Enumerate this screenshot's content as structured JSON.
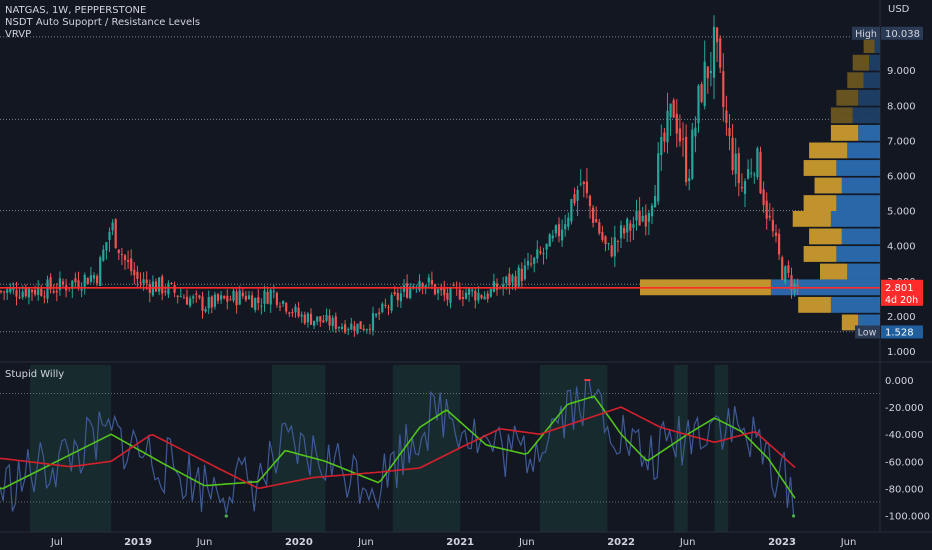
{
  "header": {
    "symbol_line": "NATGAS, 1W, PEPPERSTONE",
    "indicator_1": "NSDT Auto Supoprt / Resistance Levels",
    "indicator_2": "VRVP",
    "oscillator_title": "Stupid Willy"
  },
  "price_axis": {
    "currency": "USD",
    "high_label": "High",
    "high_value": "10.038",
    "low_label": "Low",
    "low_value": "1.528",
    "last_price": "2.801",
    "countdown": "4d 20h"
  },
  "colors": {
    "background": "#131722",
    "bull": "#26a69a",
    "bear": "#ef5350",
    "price_line": "#ff2b2b",
    "vrvp_blue": "#2b6cb0",
    "vrvp_gold": "#c99a2e",
    "vrvp_blue_dim": "#1e3f66",
    "vrvp_gold_dim": "#6b5620",
    "will_line": "#3f5a96",
    "fast_ma": "#52c41a",
    "slow_ma": "#d4202c",
    "zone": "#1c3a36"
  },
  "chart_data": [
    {
      "type": "candlestick",
      "title": "NATGAS, 1W, PEPPERSTONE",
      "x_ticks": [
        "Jul",
        "2019",
        "Jun",
        "2020",
        "Jun",
        "2021",
        "Jun",
        "2022",
        "Jun",
        "2023",
        "Jun"
      ],
      "y_ticks": [
        "1.000",
        "2.000",
        "3.000",
        "4.000",
        "5.000",
        "6.000",
        "7.000",
        "8.000",
        "9.000"
      ],
      "ylim": [
        0.7,
        10.5
      ],
      "price_path": [
        [
          "2018-03",
          2.7
        ],
        [
          "2018-07",
          2.8
        ],
        [
          "2018-10",
          3.2
        ],
        [
          "2018-11",
          4.6
        ],
        [
          "2018-12",
          3.6
        ],
        [
          "2019-01",
          3.0
        ],
        [
          "2019-03",
          2.8
        ],
        [
          "2019-06",
          2.3
        ],
        [
          "2019-09",
          2.6
        ],
        [
          "2019-10",
          2.4
        ],
        [
          "2019-11",
          2.7
        ],
        [
          "2020-01",
          2.0
        ],
        [
          "2020-04",
          1.75
        ],
        [
          "2020-06",
          1.7
        ],
        [
          "2020-08",
          2.4
        ],
        [
          "2020-10",
          3.1
        ],
        [
          "2020-12",
          2.5
        ],
        [
          "2021-01",
          2.7
        ],
        [
          "2021-03",
          2.6
        ],
        [
          "2021-06",
          3.3
        ],
        [
          "2021-08",
          4.1
        ],
        [
          "2021-10",
          5.8
        ],
        [
          "2021-11",
          4.8
        ],
        [
          "2021-12",
          3.8
        ],
        [
          "2022-01",
          4.3
        ],
        [
          "2022-03",
          5.0
        ],
        [
          "2022-05",
          8.0
        ],
        [
          "2022-06",
          6.0
        ],
        [
          "2022-07",
          8.5
        ],
        [
          "2022-08",
          9.6
        ],
        [
          "2022-09",
          7.0
        ],
        [
          "2022-10",
          5.6
        ],
        [
          "2022-11",
          6.6
        ],
        [
          "2022-12",
          4.8
        ],
        [
          "2023-01",
          3.3
        ],
        [
          "2023-02",
          2.8
        ]
      ],
      "horizontal_levels": [
        9.95,
        7.6,
        5.0,
        2.9,
        1.55
      ],
      "last_price": 2.801,
      "high": 10.038,
      "low": 1.528
    },
    {
      "type": "bar",
      "title": "VRVP",
      "price_bins": [
        1.8,
        2.3,
        2.8,
        3.25,
        3.75,
        4.25,
        4.75,
        5.2,
        5.7,
        6.2,
        6.7,
        7.2,
        7.7,
        8.2,
        8.7,
        9.2,
        9.7
      ],
      "buy_volume": [
        4,
        9,
        20,
        6,
        8,
        7,
        9,
        8,
        7,
        8,
        6,
        4,
        5,
        4,
        3,
        2,
        1
      ],
      "sell_volume": [
        3,
        6,
        24,
        5,
        6,
        6,
        7,
        6,
        5,
        6,
        7,
        5,
        4,
        4,
        3,
        3,
        2
      ]
    },
    {
      "type": "line",
      "title": "Stupid Willy",
      "y_ticks": [
        "0.000",
        "-20.000",
        "-40.000",
        "-60.000",
        "-80.000",
        "-100.000"
      ],
      "ylim": [
        -105,
        5
      ],
      "series": [
        {
          "key": "fast",
          "points": [
            [
              "2018-03",
              -80
            ],
            [
              "2018-08",
              -55
            ],
            [
              "2018-11",
              -40
            ],
            [
              "2019-03",
              -62
            ],
            [
              "2019-06",
              -78
            ],
            [
              "2019-10",
              -75
            ],
            [
              "2019-12",
              -52
            ],
            [
              "2020-03",
              -60
            ],
            [
              "2020-07",
              -76
            ],
            [
              "2020-10",
              -35
            ],
            [
              "2020-12",
              -22
            ],
            [
              "2021-03",
              -48
            ],
            [
              "2021-06",
              -55
            ],
            [
              "2021-09",
              -18
            ],
            [
              "2021-11",
              -12
            ],
            [
              "2022-01",
              -40
            ],
            [
              "2022-03",
              -60
            ],
            [
              "2022-06",
              -40
            ],
            [
              "2022-08",
              -28
            ],
            [
              "2022-10",
              -38
            ],
            [
              "2022-12",
              -58
            ],
            [
              "2023-02",
              -88
            ]
          ]
        },
        {
          "key": "slow",
          "points": [
            [
              "2018-03",
              -58
            ],
            [
              "2018-08",
              -64
            ],
            [
              "2018-11",
              -60
            ],
            [
              "2019-02",
              -40
            ],
            [
              "2019-06",
              -60
            ],
            [
              "2019-10",
              -80
            ],
            [
              "2020-02",
              -72
            ],
            [
              "2020-07",
              -68
            ],
            [
              "2020-10",
              -65
            ],
            [
              "2021-01",
              -50
            ],
            [
              "2021-04",
              -36
            ],
            [
              "2021-07",
              -40
            ],
            [
              "2021-10",
              -30
            ],
            [
              "2022-01",
              -20
            ],
            [
              "2022-04",
              -35
            ],
            [
              "2022-08",
              -46
            ],
            [
              "2022-11",
              -38
            ],
            [
              "2023-02",
              -65
            ]
          ]
        }
      ],
      "zones": [
        [
          "2018-05",
          "2018-11"
        ],
        [
          "2019-11",
          "2020-03"
        ],
        [
          "2020-08",
          "2021-01"
        ],
        [
          "2021-07",
          "2021-12"
        ],
        [
          "2022-05",
          "2022-06"
        ],
        [
          "2022-08",
          "2022-09"
        ]
      ]
    }
  ]
}
